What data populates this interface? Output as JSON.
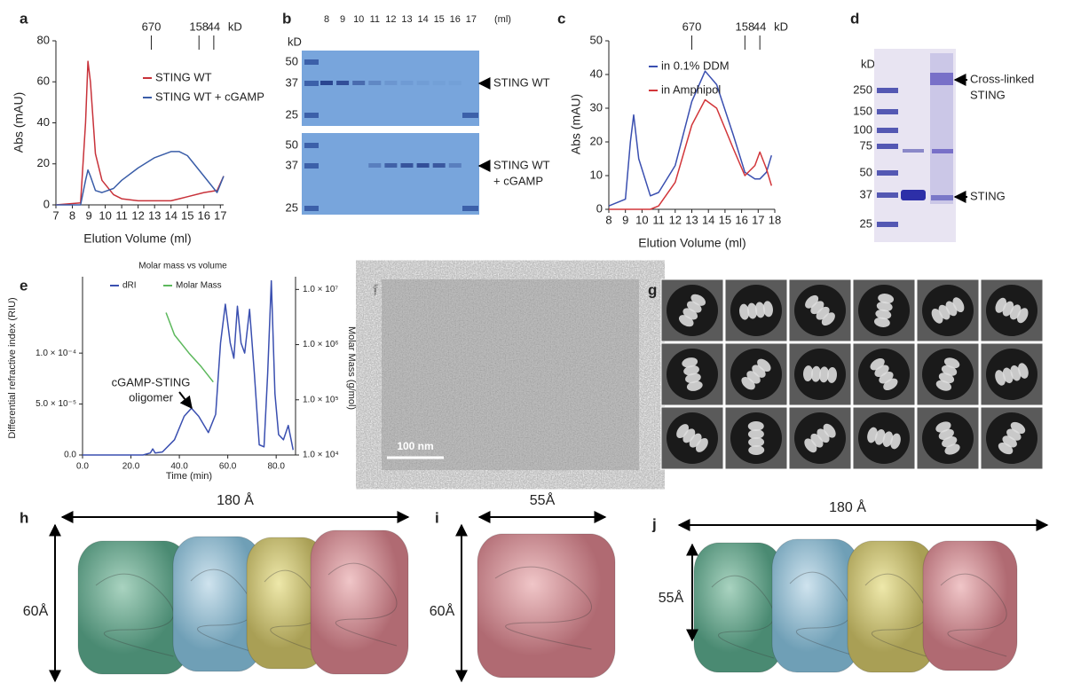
{
  "chart_data": [
    {
      "type": "line",
      "panel": "a",
      "xlabel": "Elution Volume (ml)",
      "ylabel": "Abs (mAU)",
      "xlim": [
        7,
        17.2
      ],
      "ylim": [
        0,
        80
      ],
      "xticks": [
        7,
        8,
        9,
        10,
        11,
        12,
        13,
        14,
        15,
        16,
        17
      ],
      "yticks": [
        0,
        20,
        40,
        60,
        80
      ],
      "markers": [
        {
          "label": "670",
          "x": 12.8
        },
        {
          "label": "158",
          "x": 15.7
        },
        {
          "label": "44",
          "x": 16.6
        }
      ],
      "marker_unit": "kD",
      "x": [
        7,
        8.5,
        8.8,
        8.95,
        9.1,
        9.4,
        9.8,
        10.5,
        11,
        12,
        13,
        14,
        14.5,
        15,
        16,
        16.8,
        17.2
      ],
      "series": [
        {
          "name": "STING WT",
          "color": "#c8323a",
          "values": [
            0,
            1,
            40,
            70,
            60,
            25,
            12,
            5,
            3,
            2,
            2,
            2,
            3,
            4,
            6,
            7,
            14
          ]
        },
        {
          "name": "STING WT + cGAMP",
          "color": "#3a5da8",
          "values": [
            0,
            0,
            12,
            17,
            14,
            7,
            6,
            8,
            12,
            18,
            23,
            26,
            26,
            24,
            14,
            6,
            14
          ]
        }
      ]
    },
    {
      "type": "line",
      "panel": "c",
      "xlabel": "Elution Volume (ml)",
      "ylabel": "Abs (mAU)",
      "xlim": [
        8,
        18
      ],
      "ylim": [
        0,
        50
      ],
      "xticks": [
        8,
        9,
        10,
        11,
        12,
        13,
        14,
        15,
        16,
        17,
        18
      ],
      "yticks": [
        0,
        10,
        20,
        30,
        40,
        50
      ],
      "markers": [
        {
          "label": "670",
          "x": 13
        },
        {
          "label": "158",
          "x": 16.2
        },
        {
          "label": "44",
          "x": 17.1
        }
      ],
      "marker_unit": "kD",
      "x": [
        8,
        9,
        9.3,
        9.5,
        9.8,
        10.5,
        11,
        12,
        13,
        13.8,
        14.5,
        15.5,
        16.2,
        16.8,
        17.1,
        17.5,
        17.8
      ],
      "series": [
        {
          "name": "in 0.1% DDM",
          "color": "#3a4fb0",
          "values": [
            1,
            3,
            20,
            28,
            15,
            4,
            5,
            13,
            32,
            41,
            37,
            22,
            11,
            9,
            9,
            11,
            16
          ]
        },
        {
          "name": "in Amphipol",
          "color": "#d2363a",
          "values": [
            0,
            0,
            0,
            0,
            0,
            0,
            1,
            8,
            25,
            32.5,
            30,
            18,
            10,
            13,
            17,
            12,
            7
          ]
        }
      ]
    },
    {
      "type": "line",
      "panel": "e",
      "title": "Molar mass vs volume",
      "xlabel": "Time (min)",
      "ylabel": "Differential refractive index (RIU)",
      "y2label": "Molar Mass (g/mol)",
      "annotation": [
        "cGAMP-STING",
        "oligomer"
      ],
      "xlim": [
        0,
        88
      ],
      "ylim": [
        0,
        0.000175
      ],
      "y2lim": [
        10000,
        17000000
      ],
      "y2log": true,
      "xticks": [
        {
          "value": 0,
          "label": "0.0"
        },
        {
          "value": 20,
          "label": "20.0"
        },
        {
          "value": 40,
          "label": "40.0"
        },
        {
          "value": 60,
          "label": "60.0"
        },
        {
          "value": 80,
          "label": "80.0"
        }
      ],
      "yticks": [
        {
          "value": 0,
          "label": "0.0"
        },
        {
          "value": 5e-05,
          "label": "5.0 × 10⁻⁵"
        },
        {
          "value": 0.0001,
          "label": "1.0 × 10⁻⁴"
        }
      ],
      "y2ticks": [
        {
          "value": 10000,
          "label": "1.0 × 10⁴"
        },
        {
          "value": 100000,
          "label": "1.0 × 10⁵"
        },
        {
          "value": 1000000,
          "label": "1.0 × 10⁶"
        },
        {
          "value": 10000000,
          "label": "1.0 × 10⁷"
        }
      ],
      "series": [
        {
          "name": "dRI",
          "color": "#3a4fb0",
          "x": [
            0,
            25,
            28,
            29,
            30,
            33,
            38,
            42,
            45,
            48,
            52,
            55,
            57,
            59,
            61,
            62.5,
            64,
            65.5,
            67,
            69,
            71,
            73,
            75,
            76.5,
            78,
            79.5,
            81,
            83,
            85,
            87
          ],
          "values": [
            0,
            0,
            2e-06,
            6e-06,
            2e-06,
            3e-06,
            1.5e-05,
            3.8e-05,
            4.6e-05,
            3.8e-05,
            2.2e-05,
            4e-05,
            0.00011,
            0.000148,
            0.00011,
            9.5e-05,
            0.000146,
            0.00011,
            0.0001,
            0.000143,
            8e-05,
            1e-05,
            8e-06,
            8e-05,
            0.000171,
            6e-05,
            2e-05,
            1.5e-05,
            2.9e-05,
            5e-06
          ]
        },
        {
          "name": "Molar Mass",
          "color": "#5cb85c",
          "axis": "y2",
          "x": [
            34.5,
            38,
            44,
            49,
            54
          ],
          "values": [
            3800000,
            1500000,
            700000,
            400000,
            210000
          ]
        }
      ]
    }
  ],
  "gels": [
    {
      "panel": "b",
      "unit": "kD",
      "lane_unit": "(ml)",
      "lanes": [
        "8",
        "9",
        "10",
        "11",
        "12",
        "13",
        "14",
        "15",
        "16",
        "17"
      ],
      "blots": [
        {
          "markers": [
            "50",
            "37",
            "25"
          ],
          "label": [
            "STING WT"
          ]
        },
        {
          "markers": [
            "50",
            "37",
            "25"
          ],
          "label": [
            "STING WT",
            "+ cGAMP"
          ]
        }
      ]
    },
    {
      "panel": "d",
      "unit": "kD",
      "markers": [
        "250",
        "150",
        "100",
        "75",
        "50",
        "37",
        "25"
      ],
      "labels": [
        [
          "Cross-linked",
          "STING"
        ],
        [
          "STING"
        ]
      ]
    }
  ],
  "micrograph": {
    "panel": "f",
    "scale_bar": "100 nm"
  },
  "class_averages": {
    "panel": "g"
  },
  "maps": [
    {
      "panel": "h",
      "width": "180 Å",
      "height": "60Å"
    },
    {
      "panel": "i",
      "width": "55Å",
      "height": "60Å"
    },
    {
      "panel": "j",
      "width": "180 Å",
      "height": "55Å"
    }
  ]
}
